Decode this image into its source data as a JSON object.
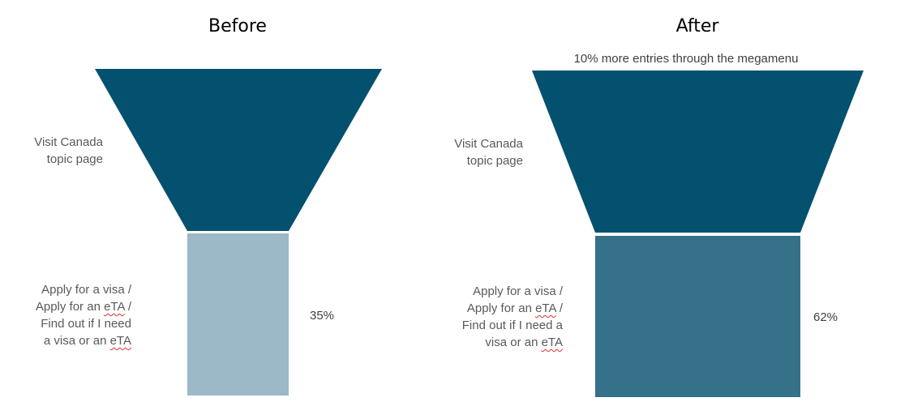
{
  "colors": {
    "top_stage": "#03506F",
    "before_bottom": "#9BB9C6",
    "after_bottom": "#357189"
  },
  "before": {
    "title": "Before",
    "top_stage": {
      "label_lines": [
        "Visit Canada",
        "topic page"
      ]
    },
    "bottom_stage": {
      "label_lines": [
        "Apply for a visa /",
        "Apply for an eTA /",
        "Find out if I need",
        "a visa or an eTA"
      ],
      "value": "35%"
    }
  },
  "after": {
    "title": "After",
    "note": "10% more entries through the megamenu",
    "top_stage": {
      "label_lines": [
        "Visit Canada",
        "topic page"
      ]
    },
    "bottom_stage": {
      "label_lines": [
        "Apply for a visa /",
        "Apply for an eTA /",
        "Find out if I need",
        "visa or an eTA"
      ],
      "value": "62%"
    }
  }
}
